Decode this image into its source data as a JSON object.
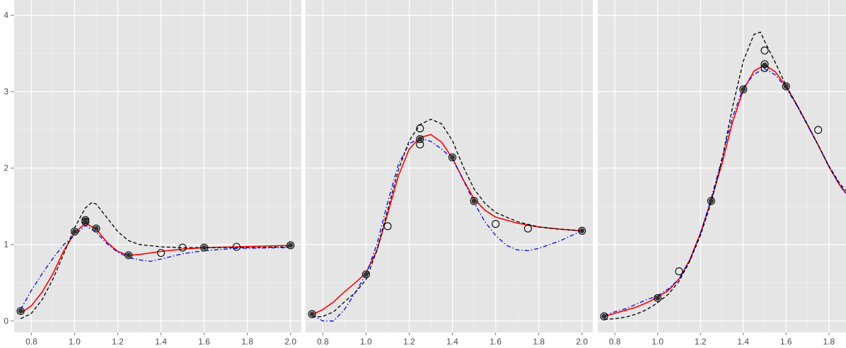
{
  "chart_data": {
    "type": "scatter",
    "layout": "faceted",
    "ylim": [
      -0.15,
      4.2
    ],
    "y_ticks": [
      0,
      1,
      2,
      3,
      4
    ],
    "y_tick_labels": [
      "0",
      "1",
      "2",
      "3",
      "4"
    ],
    "x_ticks": [
      0.8,
      1.0,
      1.2,
      1.4,
      1.6,
      1.8,
      2.0
    ],
    "x_tick_labels": [
      "0.8",
      "1.0",
      "1.2",
      "1.4",
      "1.6",
      "1.8",
      "2.0"
    ],
    "grid": true,
    "colors": {
      "panel_bg": "#e5e5e5",
      "grid": "#ffffff",
      "red": "#ff0000",
      "blue": "#0000ff",
      "black": "#000000"
    },
    "panels": [
      {
        "xlim": [
          0.72,
          2.05
        ],
        "points_open": [
          [
            0.75,
            0.13
          ],
          [
            1.0,
            1.17
          ],
          [
            1.05,
            1.3
          ],
          [
            1.05,
            1.32
          ],
          [
            1.1,
            1.21
          ],
          [
            1.25,
            0.86
          ],
          [
            1.4,
            0.89
          ],
          [
            1.5,
            0.96
          ],
          [
            1.6,
            0.96
          ],
          [
            1.75,
            0.97
          ],
          [
            2.0,
            0.99
          ]
        ],
        "points_filled": [
          [
            0.75,
            0.13
          ],
          [
            1.0,
            1.17
          ],
          [
            1.05,
            1.31
          ],
          [
            1.1,
            1.21
          ],
          [
            1.25,
            0.86
          ],
          [
            1.6,
            0.96
          ],
          [
            2.0,
            0.99
          ]
        ],
        "series": [
          {
            "style": "red-solid",
            "points": [
              [
                0.75,
                0.1
              ],
              [
                0.8,
                0.2
              ],
              [
                0.85,
                0.38
              ],
              [
                0.9,
                0.62
              ],
              [
                0.95,
                0.92
              ],
              [
                1.0,
                1.15
              ],
              [
                1.05,
                1.28
              ],
              [
                1.1,
                1.2
              ],
              [
                1.15,
                1.03
              ],
              [
                1.2,
                0.91
              ],
              [
                1.25,
                0.86
              ],
              [
                1.3,
                0.87
              ],
              [
                1.4,
                0.91
              ],
              [
                1.5,
                0.94
              ],
              [
                1.6,
                0.96
              ],
              [
                1.75,
                0.97
              ],
              [
                2.0,
                0.99
              ]
            ]
          },
          {
            "style": "blue-dotdash",
            "points": [
              [
                0.75,
                0.15
              ],
              [
                0.8,
                0.4
              ],
              [
                0.85,
                0.62
              ],
              [
                0.9,
                0.82
              ],
              [
                0.95,
                1.0
              ],
              [
                1.0,
                1.12
              ],
              [
                1.05,
                1.25
              ],
              [
                1.1,
                1.16
              ],
              [
                1.15,
                1.01
              ],
              [
                1.2,
                0.9
              ],
              [
                1.25,
                0.83
              ],
              [
                1.3,
                0.8
              ],
              [
                1.35,
                0.78
              ],
              [
                1.4,
                0.81
              ],
              [
                1.5,
                0.88
              ],
              [
                1.6,
                0.92
              ],
              [
                1.75,
                0.95
              ],
              [
                2.0,
                0.96
              ]
            ]
          },
          {
            "style": "black-dash",
            "points": [
              [
                0.75,
                0.03
              ],
              [
                0.8,
                0.1
              ],
              [
                0.85,
                0.28
              ],
              [
                0.9,
                0.55
              ],
              [
                0.95,
                0.88
              ],
              [
                1.0,
                1.22
              ],
              [
                1.05,
                1.48
              ],
              [
                1.08,
                1.55
              ],
              [
                1.1,
                1.53
              ],
              [
                1.15,
                1.35
              ],
              [
                1.2,
                1.17
              ],
              [
                1.25,
                1.05
              ],
              [
                1.3,
                1.0
              ],
              [
                1.4,
                0.97
              ],
              [
                1.5,
                0.96
              ],
              [
                1.6,
                0.96
              ],
              [
                1.75,
                0.96
              ],
              [
                2.0,
                0.97
              ]
            ]
          }
        ]
      },
      {
        "xlim": [
          0.72,
          2.05
        ],
        "points_open": [
          [
            0.75,
            0.09
          ],
          [
            1.0,
            0.61
          ],
          [
            1.1,
            1.24
          ],
          [
            1.25,
            2.31
          ],
          [
            1.25,
            2.38
          ],
          [
            1.25,
            2.52
          ],
          [
            1.4,
            2.14
          ],
          [
            1.5,
            1.57
          ],
          [
            1.6,
            1.27
          ],
          [
            1.75,
            1.21
          ],
          [
            2.0,
            1.18
          ]
        ],
        "points_filled": [
          [
            0.75,
            0.09
          ],
          [
            1.0,
            0.61
          ],
          [
            1.25,
            2.38
          ],
          [
            1.4,
            2.14
          ],
          [
            1.5,
            1.57
          ],
          [
            2.0,
            1.18
          ]
        ],
        "series": [
          {
            "style": "red-solid",
            "points": [
              [
                0.75,
                0.08
              ],
              [
                0.8,
                0.15
              ],
              [
                0.85,
                0.25
              ],
              [
                0.9,
                0.38
              ],
              [
                0.95,
                0.5
              ],
              [
                1.0,
                0.63
              ],
              [
                1.05,
                0.92
              ],
              [
                1.1,
                1.4
              ],
              [
                1.15,
                1.9
              ],
              [
                1.2,
                2.25
              ],
              [
                1.25,
                2.4
              ],
              [
                1.3,
                2.44
              ],
              [
                1.35,
                2.34
              ],
              [
                1.4,
                2.13
              ],
              [
                1.45,
                1.85
              ],
              [
                1.5,
                1.6
              ],
              [
                1.55,
                1.45
              ],
              [
                1.6,
                1.36
              ],
              [
                1.7,
                1.28
              ],
              [
                1.8,
                1.23
              ],
              [
                1.9,
                1.2
              ],
              [
                2.0,
                1.18
              ]
            ]
          },
          {
            "style": "blue-dotdash",
            "points": [
              [
                0.75,
                0.08
              ],
              [
                0.8,
                0.0
              ],
              [
                0.85,
                0.0
              ],
              [
                0.9,
                0.15
              ],
              [
                0.95,
                0.37
              ],
              [
                1.0,
                0.61
              ],
              [
                1.05,
                1.0
              ],
              [
                1.1,
                1.55
              ],
              [
                1.15,
                2.05
              ],
              [
                1.2,
                2.32
              ],
              [
                1.25,
                2.39
              ],
              [
                1.3,
                2.35
              ],
              [
                1.35,
                2.25
              ],
              [
                1.4,
                2.12
              ],
              [
                1.45,
                1.85
              ],
              [
                1.5,
                1.55
              ],
              [
                1.55,
                1.3
              ],
              [
                1.6,
                1.12
              ],
              [
                1.65,
                0.99
              ],
              [
                1.7,
                0.93
              ],
              [
                1.75,
                0.92
              ],
              [
                1.8,
                0.95
              ],
              [
                1.9,
                1.05
              ],
              [
                2.0,
                1.18
              ]
            ]
          },
          {
            "style": "black-dash",
            "points": [
              [
                0.75,
                0.05
              ],
              [
                0.8,
                0.06
              ],
              [
                0.85,
                0.12
              ],
              [
                0.9,
                0.25
              ],
              [
                0.95,
                0.37
              ],
              [
                1.0,
                0.54
              ],
              [
                1.05,
                0.92
              ],
              [
                1.1,
                1.45
              ],
              [
                1.15,
                1.98
              ],
              [
                1.2,
                2.36
              ],
              [
                1.25,
                2.57
              ],
              [
                1.3,
                2.64
              ],
              [
                1.35,
                2.58
              ],
              [
                1.4,
                2.36
              ],
              [
                1.45,
                2.02
              ],
              [
                1.5,
                1.73
              ],
              [
                1.55,
                1.54
              ],
              [
                1.6,
                1.42
              ],
              [
                1.7,
                1.3
              ],
              [
                1.8,
                1.23
              ],
              [
                1.9,
                1.2
              ],
              [
                2.0,
                1.18
              ]
            ]
          }
        ]
      },
      {
        "xlim": [
          0.72,
          1.88
        ],
        "points_open": [
          [
            0.75,
            0.06
          ],
          [
            1.0,
            0.3
          ],
          [
            1.1,
            0.65
          ],
          [
            1.25,
            1.57
          ],
          [
            1.4,
            3.03
          ],
          [
            1.5,
            3.31
          ],
          [
            1.5,
            3.36
          ],
          [
            1.5,
            3.54
          ],
          [
            1.6,
            3.07
          ],
          [
            1.75,
            2.5
          ]
        ],
        "points_filled": [
          [
            0.75,
            0.06
          ],
          [
            1.0,
            0.3
          ],
          [
            1.25,
            1.57
          ],
          [
            1.4,
            3.03
          ],
          [
            1.5,
            3.35
          ],
          [
            1.6,
            3.07
          ]
        ],
        "series": [
          {
            "style": "red-solid",
            "points": [
              [
                0.75,
                0.06
              ],
              [
                0.8,
                0.1
              ],
              [
                0.85,
                0.14
              ],
              [
                0.9,
                0.18
              ],
              [
                0.95,
                0.24
              ],
              [
                1.0,
                0.31
              ],
              [
                1.05,
                0.4
              ],
              [
                1.1,
                0.55
              ],
              [
                1.15,
                0.8
              ],
              [
                1.2,
                1.15
              ],
              [
                1.25,
                1.58
              ],
              [
                1.3,
                2.05
              ],
              [
                1.35,
                2.6
              ],
              [
                1.4,
                3.02
              ],
              [
                1.45,
                3.27
              ],
              [
                1.5,
                3.35
              ],
              [
                1.55,
                3.26
              ],
              [
                1.6,
                3.07
              ],
              [
                1.65,
                2.83
              ],
              [
                1.7,
                2.57
              ],
              [
                1.75,
                2.3
              ],
              [
                1.8,
                2.02
              ],
              [
                1.85,
                1.78
              ],
              [
                1.88,
                1.67
              ]
            ]
          },
          {
            "style": "blue-dotdash",
            "points": [
              [
                0.75,
                0.07
              ],
              [
                0.8,
                0.12
              ],
              [
                0.85,
                0.16
              ],
              [
                0.9,
                0.22
              ],
              [
                0.95,
                0.28
              ],
              [
                1.0,
                0.33
              ],
              [
                1.05,
                0.42
              ],
              [
                1.1,
                0.55
              ],
              [
                1.15,
                0.79
              ],
              [
                1.2,
                1.14
              ],
              [
                1.25,
                1.6
              ],
              [
                1.3,
                2.12
              ],
              [
                1.35,
                2.67
              ],
              [
                1.4,
                3.05
              ],
              [
                1.45,
                3.23
              ],
              [
                1.5,
                3.3
              ],
              [
                1.55,
                3.22
              ],
              [
                1.6,
                3.05
              ],
              [
                1.65,
                2.82
              ],
              [
                1.7,
                2.56
              ],
              [
                1.75,
                2.3
              ],
              [
                1.8,
                2.02
              ],
              [
                1.85,
                1.78
              ],
              [
                1.88,
                1.66
              ]
            ]
          },
          {
            "style": "black-dash",
            "points": [
              [
                0.75,
                0.02
              ],
              [
                0.8,
                0.03
              ],
              [
                0.85,
                0.05
              ],
              [
                0.9,
                0.09
              ],
              [
                0.95,
                0.15
              ],
              [
                1.0,
                0.24
              ],
              [
                1.05,
                0.35
              ],
              [
                1.1,
                0.52
              ],
              [
                1.15,
                0.78
              ],
              [
                1.2,
                1.12
              ],
              [
                1.25,
                1.55
              ],
              [
                1.3,
                2.1
              ],
              [
                1.35,
                2.8
              ],
              [
                1.4,
                3.4
              ],
              [
                1.45,
                3.75
              ],
              [
                1.48,
                3.78
              ],
              [
                1.5,
                3.66
              ],
              [
                1.55,
                3.38
              ],
              [
                1.6,
                3.08
              ],
              [
                1.65,
                2.83
              ],
              [
                1.7,
                2.57
              ],
              [
                1.75,
                2.3
              ],
              [
                1.8,
                2.03
              ],
              [
                1.85,
                1.8
              ],
              [
                1.88,
                1.7
              ]
            ]
          }
        ]
      }
    ]
  }
}
